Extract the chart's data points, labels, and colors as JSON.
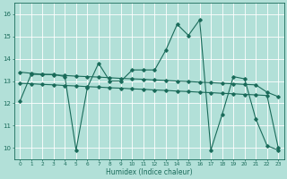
{
  "xlabel": "Humidex (Indice chaleur)",
  "background_color": "#b2e0d8",
  "grid_color": "#ffffff",
  "line_color": "#1a6b5a",
  "xlim": [
    -0.5,
    23.5
  ],
  "ylim": [
    9.5,
    16.5
  ],
  "xticks": [
    0,
    1,
    2,
    3,
    4,
    5,
    6,
    7,
    8,
    9,
    10,
    11,
    12,
    13,
    14,
    15,
    16,
    17,
    18,
    19,
    20,
    21,
    22,
    23
  ],
  "yticks": [
    10,
    11,
    12,
    13,
    14,
    15,
    16
  ],
  "series1_x": [
    0,
    1,
    2,
    3,
    4,
    5,
    6,
    7,
    8,
    9,
    10,
    11,
    12,
    13,
    14,
    15,
    16,
    17,
    18,
    19,
    20,
    21,
    22,
    23
  ],
  "series1_y": [
    12.1,
    13.3,
    13.3,
    13.3,
    13.2,
    9.9,
    12.7,
    13.8,
    13.0,
    13.0,
    13.5,
    13.5,
    13.5,
    14.4,
    15.55,
    15.05,
    15.75,
    9.9,
    11.5,
    13.2,
    13.1,
    11.3,
    10.1,
    9.9
  ],
  "series2_x": [
    0,
    1,
    2,
    3,
    4,
    5,
    6,
    7,
    8,
    9,
    10,
    11,
    12,
    13,
    14,
    15,
    16,
    17,
    18,
    19,
    20,
    21,
    22,
    23
  ],
  "series2_y": [
    13.4,
    13.35,
    13.3,
    13.28,
    13.25,
    13.22,
    13.2,
    13.18,
    13.15,
    13.12,
    13.1,
    13.08,
    13.05,
    13.03,
    13.0,
    12.98,
    12.95,
    12.93,
    12.9,
    12.88,
    12.85,
    12.83,
    12.5,
    12.3
  ],
  "series3_x": [
    0,
    1,
    2,
    3,
    4,
    5,
    6,
    7,
    8,
    9,
    10,
    11,
    12,
    13,
    14,
    15,
    16,
    17,
    18,
    19,
    20,
    21,
    22,
    23
  ],
  "series3_y": [
    12.9,
    12.88,
    12.85,
    12.83,
    12.8,
    12.78,
    12.75,
    12.73,
    12.7,
    12.68,
    12.65,
    12.63,
    12.6,
    12.58,
    12.55,
    12.53,
    12.5,
    12.48,
    12.45,
    12.43,
    12.4,
    12.38,
    12.35,
    10.0
  ]
}
